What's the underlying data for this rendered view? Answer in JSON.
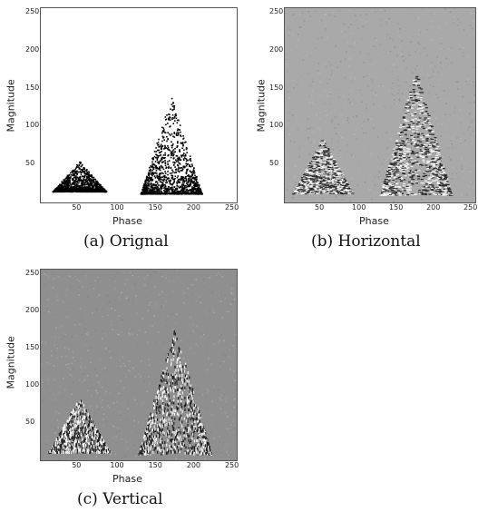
{
  "chart_data": [
    {
      "type": "heatmap",
      "caption": "(a) Orignal",
      "xlabel": "Phase",
      "ylabel": "Magnitude",
      "xticks": [
        50,
        100,
        150,
        200,
        250
      ],
      "yticks": [
        50,
        100,
        150,
        200,
        250
      ],
      "xlim": [
        0,
        256
      ],
      "ylim": [
        0,
        256
      ],
      "background": "#ffffff",
      "clusters": [
        {
          "center_x": 50,
          "x_range": [
            10,
            80
          ],
          "peak_magnitude": 55,
          "base_magnitude": 15
        },
        {
          "center_x": 170,
          "x_range": [
            130,
            210
          ],
          "peak_magnitude": 140,
          "base_magnitude": 12
        }
      ]
    },
    {
      "type": "heatmap",
      "caption": "(b) Horizontal",
      "xlabel": "Phase",
      "ylabel": "Magnitude",
      "xticks": [
        50,
        100,
        150,
        200,
        250
      ],
      "yticks": [
        50,
        100,
        150,
        200,
        250
      ],
      "xlim": [
        0,
        256
      ],
      "ylim": [
        0,
        256
      ],
      "background": "#a9a9a9",
      "clusters": [
        {
          "center_x": 50,
          "x_range": [
            10,
            90
          ],
          "peak_magnitude": 85,
          "base_magnitude": 12
        },
        {
          "center_x": 175,
          "x_range": [
            125,
            220
          ],
          "peak_magnitude": 175,
          "base_magnitude": 10
        }
      ]
    },
    {
      "type": "heatmap",
      "caption": "(c) Vertical",
      "xlabel": "Phase",
      "ylabel": "Magnitude",
      "xticks": [
        50,
        100,
        150,
        200,
        250
      ],
      "yticks": [
        50,
        100,
        150,
        200,
        250
      ],
      "xlim": [
        0,
        256
      ],
      "ylim": [
        0,
        256
      ],
      "background": "#8f8f8f",
      "clusters": [
        {
          "center_x": 50,
          "x_range": [
            10,
            90
          ],
          "peak_magnitude": 85,
          "base_magnitude": 12
        },
        {
          "center_x": 175,
          "x_range": [
            125,
            220
          ],
          "peak_magnitude": 180,
          "base_magnitude": 10
        }
      ]
    }
  ]
}
